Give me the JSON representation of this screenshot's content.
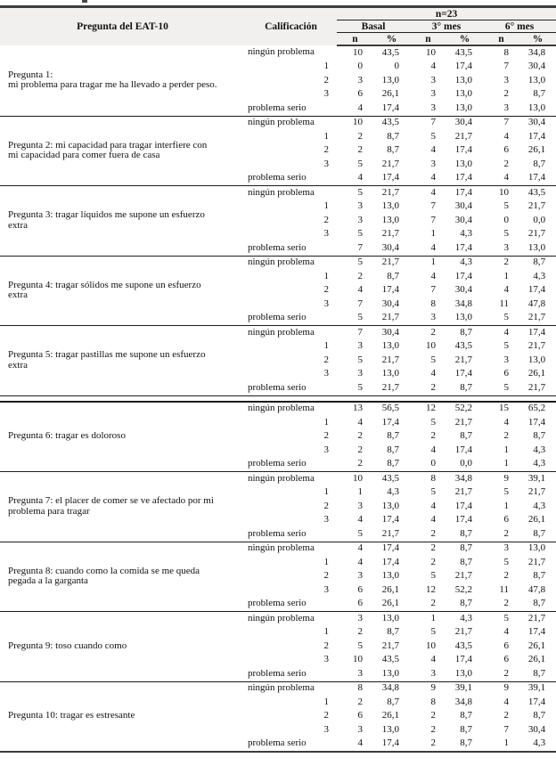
{
  "colors": {
    "header_bg": "#f1f0ee",
    "rule_thick": "#3c3c3c",
    "rule_thin": "#1c1c1c",
    "text": "#111111"
  },
  "table": {
    "col_question": "Pregunta del EAT-10",
    "col_rating": "Calificación",
    "group_label": "n=23",
    "periods": [
      "Basal",
      "3° mes",
      "6° mes"
    ],
    "sub_n": "n",
    "sub_pct": "%",
    "rating_levels": [
      "ningún problema",
      "1",
      "2",
      "3",
      "problema serio"
    ],
    "double_rule_after_question": 5,
    "questions": [
      {
        "label": "Pregunta 1:\nmi problema para tragar me ha llevado a perder peso.",
        "rows": [
          [
            "10",
            "43,5",
            "10",
            "43,5",
            "8",
            "34,8"
          ],
          [
            "0",
            "0",
            "4",
            "17,4",
            "7",
            "30,4"
          ],
          [
            "3",
            "13,0",
            "3",
            "13,0",
            "3",
            "13,0"
          ],
          [
            "6",
            "26,1",
            "3",
            "13,0",
            "2",
            "8,7"
          ],
          [
            "4",
            "17,4",
            "3",
            "13,0",
            "3",
            "13,0"
          ]
        ]
      },
      {
        "label": "Pregunta 2: mi capacidad para tragar interfiere con\nmi capacidad para comer fuera de casa",
        "rows": [
          [
            "10",
            "43,5",
            "7",
            "30,4",
            "7",
            "30,4"
          ],
          [
            "2",
            "8,7",
            "5",
            "21,7",
            "4",
            "17,4"
          ],
          [
            "2",
            "8,7",
            "4",
            "17,4",
            "6",
            "26,1"
          ],
          [
            "5",
            "21,7",
            "3",
            "13,0",
            "2",
            "8,7"
          ],
          [
            "4",
            "17,4",
            "4",
            "17,4",
            "4",
            "17,4"
          ]
        ]
      },
      {
        "label": "Pregunta 3: tragar líquidos me supone un esfuerzo\nextra",
        "rows": [
          [
            "5",
            "21,7",
            "4",
            "17,4",
            "10",
            "43,5"
          ],
          [
            "3",
            "13,0",
            "7",
            "30,4",
            "5",
            "21,7"
          ],
          [
            "3",
            "13,0",
            "7",
            "30,4",
            "0",
            "0,0"
          ],
          [
            "5",
            "21,7",
            "1",
            "4,3",
            "5",
            "21,7"
          ],
          [
            "7",
            "30,4",
            "4",
            "17,4",
            "3",
            "13,0"
          ]
        ]
      },
      {
        "label": "Pregunta 4: tragar sólidos me supone un esfuerzo\nextra",
        "rows": [
          [
            "5",
            "21,7",
            "1",
            "4,3",
            "2",
            "8,7"
          ],
          [
            "2",
            "8,7",
            "4",
            "17,4",
            "1",
            "4,3"
          ],
          [
            "4",
            "17,4",
            "7",
            "30,4",
            "4",
            "17,4"
          ],
          [
            "7",
            "30,4",
            "8",
            "34,8",
            "11",
            "47,8"
          ],
          [
            "5",
            "21,7",
            "3",
            "13,0",
            "5",
            "21,7"
          ]
        ]
      },
      {
        "label": "Pregunta 5: tragar pastillas me supone un esfuerzo\nextra",
        "rows": [
          [
            "7",
            "30,4",
            "2",
            "8,7",
            "4",
            "17,4"
          ],
          [
            "3",
            "13,0",
            "10",
            "43,5",
            "5",
            "21,7"
          ],
          [
            "5",
            "21,7",
            "5",
            "21,7",
            "3",
            "13,0"
          ],
          [
            "3",
            "13,0",
            "4",
            "17,4",
            "6",
            "26,1"
          ],
          [
            "5",
            "21,7",
            "2",
            "8,7",
            "5",
            "21,7"
          ]
        ]
      },
      {
        "label": "Pregunta 6: tragar es doloroso",
        "rows": [
          [
            "13",
            "56,5",
            "12",
            "52,2",
            "15",
            "65,2"
          ],
          [
            "4",
            "17,4",
            "5",
            "21,7",
            "4",
            "17,4"
          ],
          [
            "2",
            "8,7",
            "2",
            "8,7",
            "2",
            "8,7"
          ],
          [
            "2",
            "8,7",
            "4",
            "17,4",
            "1",
            "4,3"
          ],
          [
            "2",
            "8,7",
            "0",
            "0,0",
            "1",
            "4,3"
          ]
        ]
      },
      {
        "label": "Pregunta 7: el placer de comer se ve afectado por mi\nproblema para tragar",
        "rows": [
          [
            "10",
            "43,5",
            "8",
            "34,8",
            "9",
            "39,1"
          ],
          [
            "1",
            "4,3",
            "5",
            "21,7",
            "5",
            "21,7"
          ],
          [
            "3",
            "13,0",
            "4",
            "17,4",
            "1",
            "4,3"
          ],
          [
            "4",
            "17,4",
            "4",
            "17,4",
            "6",
            "26,1"
          ],
          [
            "5",
            "21,7",
            "2",
            "8,7",
            "2",
            "8,7"
          ]
        ]
      },
      {
        "label": "Pregunta 8: cuando como la comida se me queda\npegada a la garganta",
        "rows": [
          [
            "4",
            "17,4",
            "2",
            "8,7",
            "3",
            "13,0"
          ],
          [
            "4",
            "17,4",
            "2",
            "8,7",
            "5",
            "21,7"
          ],
          [
            "3",
            "13,0",
            "5",
            "21,7",
            "2",
            "8,7"
          ],
          [
            "6",
            "26,1",
            "12",
            "52,2",
            "11",
            "47,8"
          ],
          [
            "6",
            "26,1",
            "2",
            "8,7",
            "2",
            "8,7"
          ]
        ]
      },
      {
        "label": "Pregunta 9: toso cuando como",
        "rows": [
          [
            "3",
            "13,0",
            "1",
            "4,3",
            "5",
            "21,7"
          ],
          [
            "2",
            "8,7",
            "5",
            "21,7",
            "4",
            "17,4"
          ],
          [
            "5",
            "21,7",
            "10",
            "43,5",
            "6",
            "26,1"
          ],
          [
            "10",
            "43,5",
            "4",
            "17,4",
            "6",
            "26,1"
          ],
          [
            "3",
            "13,0",
            "3",
            "13,0",
            "2",
            "8,7"
          ]
        ]
      },
      {
        "label": "Pregunta 10: tragar es estresante",
        "rows": [
          [
            "8",
            "34,8",
            "9",
            "39,1",
            "9",
            "39,1"
          ],
          [
            "2",
            "8,7",
            "8",
            "34,8",
            "4",
            "17,4"
          ],
          [
            "6",
            "26,1",
            "2",
            "8,7",
            "2",
            "8,7"
          ],
          [
            "3",
            "13,0",
            "2",
            "8,7",
            "7",
            "30,4"
          ],
          [
            "4",
            "17,4",
            "2",
            "8,7",
            "1",
            "4,3"
          ]
        ]
      }
    ]
  }
}
